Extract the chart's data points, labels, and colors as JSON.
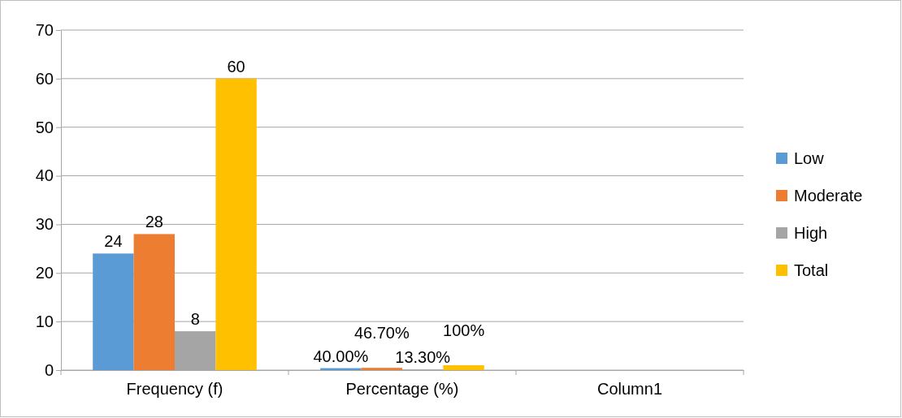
{
  "chart_data": {
    "type": "bar",
    "categories": [
      "Frequency (f)",
      "Percentage (%)",
      "Column1"
    ],
    "series": [
      {
        "name": "Low",
        "color": "#5b9bd5",
        "values": [
          24,
          0.4,
          null
        ],
        "value_labels": [
          "24",
          "40.00%",
          null
        ]
      },
      {
        "name": "Moderate",
        "color": "#ed7d31",
        "values": [
          28,
          0.467,
          null
        ],
        "value_labels": [
          "28",
          "46.70%",
          null
        ]
      },
      {
        "name": "High",
        "color": "#a5a5a5",
        "values": [
          8,
          0.133,
          null
        ],
        "value_labels": [
          "8",
          "13.30%",
          null
        ]
      },
      {
        "name": "Total",
        "color": "#ffc000",
        "values": [
          60,
          1,
          null
        ],
        "value_labels": [
          "60",
          "100%",
          null
        ]
      }
    ],
    "ylim": [
      0,
      70
    ],
    "yticks": [
      0,
      10,
      20,
      30,
      40,
      50,
      60,
      70
    ],
    "grid": "y",
    "legend": "right"
  }
}
